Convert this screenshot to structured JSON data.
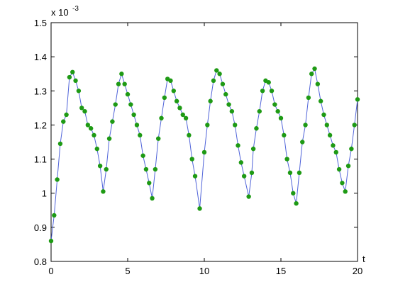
{
  "chart_data": {
    "type": "line",
    "x_label": "t",
    "y_scale_label": "x 10",
    "y_scale_exponent": "-3",
    "x": [
      0,
      0.2,
      0.4,
      0.6,
      0.8,
      1.0,
      1.2,
      1.4,
      1.6,
      1.8,
      2.0,
      2.2,
      2.4,
      2.6,
      2.8,
      3.0,
      3.2,
      3.4,
      3.6,
      3.8,
      4.0,
      4.2,
      4.4,
      4.6,
      4.8,
      5.0,
      5.2,
      5.4,
      5.6,
      5.8,
      6.0,
      6.2,
      6.4,
      6.6,
      6.8,
      7.0,
      7.2,
      7.4,
      7.6,
      7.8,
      8.0,
      8.2,
      8.4,
      8.6,
      8.8,
      9.0,
      9.2,
      9.4,
      9.7,
      10.0,
      10.2,
      10.4,
      10.6,
      10.8,
      11.0,
      11.2,
      11.4,
      11.6,
      11.8,
      12.0,
      12.2,
      12.4,
      12.6,
      12.9,
      13.1,
      13.2,
      13.4,
      13.6,
      13.8,
      14.0,
      14.2,
      14.4,
      14.6,
      14.8,
      15.0,
      15.2,
      15.4,
      15.6,
      15.8,
      16.0,
      16.2,
      16.4,
      16.6,
      16.8,
      17.0,
      17.2,
      17.4,
      17.6,
      17.8,
      18.0,
      18.2,
      18.4,
      18.6,
      18.8,
      19.0,
      19.2,
      19.4,
      19.6,
      19.8,
      20.0
    ],
    "series": [
      {
        "line_color": "#4f63d9",
        "color": "#1e9a14",
        "values": [
          0.86,
          0.935,
          1.04,
          1.145,
          1.21,
          1.23,
          1.34,
          1.355,
          1.33,
          1.3,
          1.25,
          1.24,
          1.2,
          1.19,
          1.17,
          1.13,
          1.08,
          1.005,
          1.07,
          1.16,
          1.21,
          1.26,
          1.32,
          1.35,
          1.32,
          1.29,
          1.26,
          1.23,
          1.2,
          1.17,
          1.11,
          1.07,
          1.03,
          0.985,
          1.07,
          1.16,
          1.22,
          1.28,
          1.335,
          1.33,
          1.3,
          1.27,
          1.25,
          1.23,
          1.22,
          1.17,
          1.1,
          1.05,
          0.955,
          1.12,
          1.2,
          1.27,
          1.33,
          1.36,
          1.35,
          1.32,
          1.29,
          1.26,
          1.24,
          1.2,
          1.14,
          1.09,
          1.05,
          0.99,
          1.06,
          1.13,
          1.19,
          1.24,
          1.3,
          1.33,
          1.325,
          1.3,
          1.26,
          1.24,
          1.22,
          1.17,
          1.1,
          1.06,
          1.0,
          0.97,
          1.06,
          1.15,
          1.2,
          1.28,
          1.35,
          1.365,
          1.32,
          1.27,
          1.23,
          1.2,
          1.17,
          1.14,
          1.12,
          1.07,
          1.03,
          1.005,
          1.08,
          1.13,
          1.2,
          1.275
        ]
      }
    ],
    "xlim": [
      0,
      20
    ],
    "xticks": [
      0,
      5,
      10,
      15,
      20
    ],
    "ylim": [
      0.8,
      1.5
    ],
    "yticks": [
      0.8,
      0.9,
      1,
      1.1,
      1.2,
      1.3,
      1.4,
      1.5
    ],
    "grid": false
  }
}
